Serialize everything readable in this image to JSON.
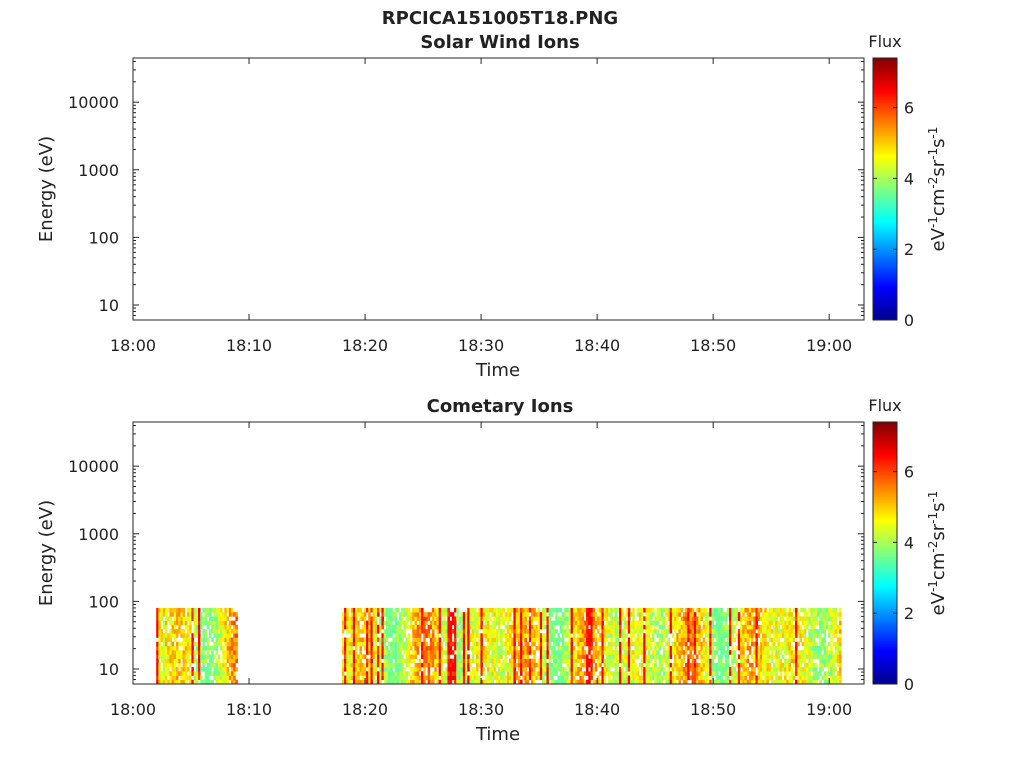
{
  "figure_title": "RPCICA151005T18.PNG",
  "chart_data": [
    {
      "type": "heatmap",
      "title": "Solar Wind Ions",
      "xlabel": "Time",
      "ylabel": "Energy (eV)",
      "x_ticks": [
        "18:00",
        "18:10",
        "18:20",
        "18:30",
        "18:40",
        "18:50",
        "19:00"
      ],
      "x_range": [
        "18:00",
        "19:03"
      ],
      "y_scale": "log",
      "y_ticks": [
        10,
        100,
        1000,
        10000
      ],
      "y_tick_labels": [
        "10",
        "100",
        "1000",
        "10000"
      ],
      "y_range": [
        6,
        45000
      ],
      "colorbar": {
        "title": "Flux",
        "label": "eV-1cm-2sr-1s-1",
        "ticks": [
          "0",
          "2",
          "4",
          "6"
        ],
        "range": [
          0,
          7.4
        ],
        "colormap": "jet"
      },
      "data_blocks": []
    },
    {
      "type": "heatmap",
      "title": "Cometary Ions",
      "xlabel": "Time",
      "ylabel": "Energy (eV)",
      "x_ticks": [
        "18:00",
        "18:10",
        "18:20",
        "18:30",
        "18:40",
        "18:50",
        "19:00"
      ],
      "x_range": [
        "18:00",
        "19:03"
      ],
      "y_scale": "log",
      "y_ticks": [
        10,
        100,
        1000,
        10000
      ],
      "y_tick_labels": [
        "10",
        "100",
        "1000",
        "10000"
      ],
      "y_range": [
        6,
        45000
      ],
      "colorbar": {
        "title": "Flux",
        "label": "eV-1cm-2sr-1s-1",
        "ticks": [
          "0",
          "2",
          "4",
          "6"
        ],
        "range": [
          0,
          7.4
        ],
        "colormap": "jet"
      },
      "data_blocks": [
        {
          "t_start": "18:02",
          "t_end": "18:09",
          "e_min": 6,
          "e_max": 80,
          "flux_min": 3.5,
          "flux_max": 6.5
        },
        {
          "t_start": "18:18",
          "t_end": "19:01",
          "e_min": 6,
          "e_max": 80,
          "flux_min": 3.5,
          "flux_max": 6.5
        }
      ]
    }
  ]
}
